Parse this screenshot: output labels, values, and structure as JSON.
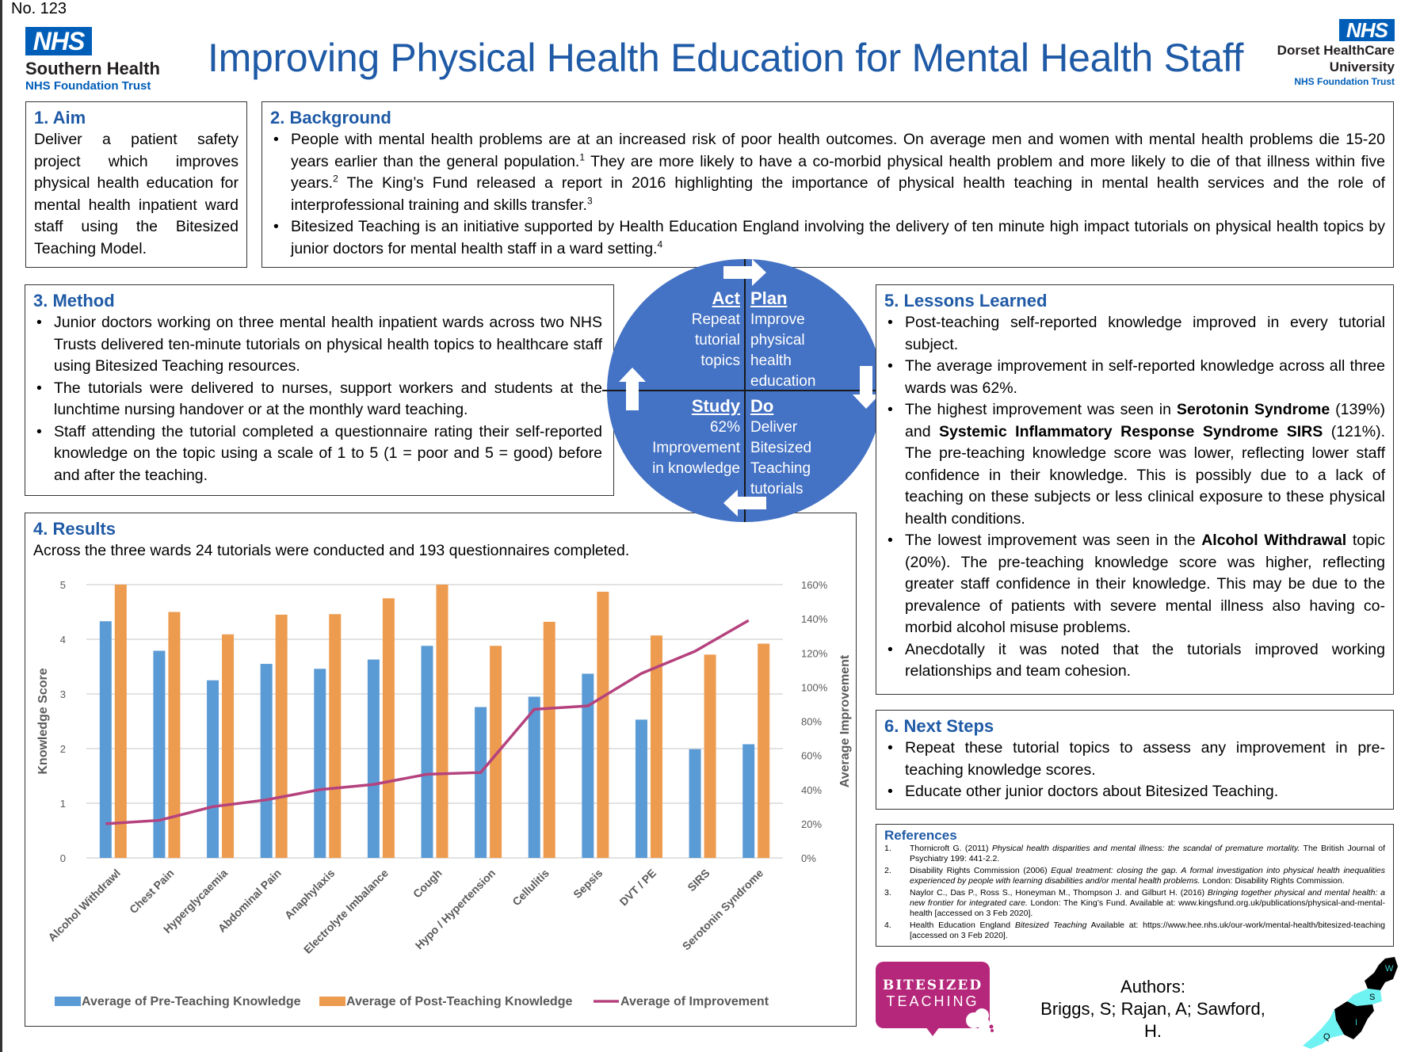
{
  "poster_number": "No. 123",
  "header": {
    "title": "Improving Physical Health Education for Mental Health Staff",
    "logo_left": {
      "badge": "NHS",
      "org": "Southern Health",
      "trust": "NHS Foundation Trust"
    },
    "logo_right": {
      "badge": "NHS",
      "org_line1": "Dorset HealthCare",
      "org_line2": "University",
      "trust": "NHS Foundation Trust"
    }
  },
  "aim": {
    "heading": "1. Aim",
    "text": "Deliver a patient safety project which improves physical health education for mental health inpatient ward staff using the Bitesized Teaching Model."
  },
  "background": {
    "heading": "2. Background",
    "bullets": [
      {
        "text": "People with mental health problems are at an increased risk of poor health outcomes. On average men and women with mental health problems die 15-20 years earlier than the general population.",
        "sup1": "1",
        "text2": " They are more likely to have a co-morbid physical health problem and more likely to die of that illness within five years.",
        "sup2": "2",
        "text3": " The King’s Fund released a report in 2016 highlighting the importance of physical health teaching in mental health services and the role of interprofessional training and skills transfer.",
        "sup3": "3"
      },
      {
        "text": "Bitesized Teaching is an initiative supported by Health Education England involving the delivery of ten minute high impact tutorials on physical health topics by junior doctors for mental health staff in a ward setting.",
        "sup1": "4"
      }
    ]
  },
  "method": {
    "heading": "3. Method",
    "bullets": [
      "Junior doctors working on three mental health inpatient wards across two NHS Trusts delivered ten-minute tutorials on physical health topics to healthcare staff using Bitesized Teaching resources.",
      "The tutorials were delivered to nurses, support workers and students at the lunchtime nursing handover or at the monthly ward teaching.",
      "Staff attending the tutorial completed a questionnaire rating their self-reported knowledge on the topic using a scale of 1 to 5 (1 = poor and 5 = good) before and after the teaching."
    ]
  },
  "pdsa": {
    "act": {
      "title": "Act",
      "lines": [
        "Repeat",
        "tutorial",
        "topics"
      ]
    },
    "plan": {
      "title": "Plan",
      "lines": [
        "Improve",
        "physical",
        "health",
        "education"
      ]
    },
    "study": {
      "title": "Study",
      "lines": [
        "62%",
        "Improvement",
        "in knowledge"
      ]
    },
    "do": {
      "title": "Do",
      "lines": [
        "Deliver",
        "Bitesized",
        "Teaching",
        "tutorials"
      ]
    },
    "color": "#4472c4",
    "icons": [
      "arrow-right-icon",
      "arrow-down-icon",
      "arrow-left-icon",
      "arrow-up-icon"
    ]
  },
  "results": {
    "heading": "4. Results",
    "summary": "Across the three wards 24 tutorials were conducted and 193 questionnaires completed."
  },
  "chart_data": {
    "type": "bar",
    "title": "",
    "categories": [
      "Alcohol Withdrawl",
      "Chest Pain",
      "Hyperglycaemia",
      "Abdominal Pain",
      "Anaphylaxis",
      "Electrolyte Imbalance",
      "Cough",
      "Hypo / Hypertension",
      "Cellulitis",
      "Sepsis",
      "DVT / PE",
      "SIRS",
      "Serotonin Syndrome"
    ],
    "series": [
      {
        "name": "Average of Pre-Teaching Knowledge",
        "type": "bar",
        "axis": "left",
        "color": "#5b9bd5",
        "values": [
          4.33,
          3.79,
          3.25,
          3.55,
          3.46,
          3.63,
          3.88,
          2.76,
          2.95,
          3.37,
          2.53,
          1.99,
          2.08
        ]
      },
      {
        "name": "Average of Post-Teaching Knowledge",
        "type": "bar",
        "axis": "left",
        "color": "#ed9b4f",
        "values": [
          5.0,
          4.5,
          4.09,
          4.45,
          4.46,
          4.75,
          5.0,
          3.88,
          4.32,
          4.87,
          4.07,
          3.72,
          3.92
        ]
      },
      {
        "name": "Average of Improvement",
        "type": "line",
        "axis": "right",
        "color": "#b5427e",
        "values": [
          0.2,
          0.22,
          0.3,
          0.34,
          0.4,
          0.43,
          0.49,
          0.5,
          0.87,
          0.89,
          1.08,
          1.21,
          1.39
        ]
      }
    ],
    "ylabel": "Knowledge Score",
    "ylim": [
      0,
      5
    ],
    "yticks": [
      "0",
      "1",
      "2",
      "3",
      "4",
      "5"
    ],
    "y2label": "Average Improvement",
    "y2lim": [
      0,
      1.6
    ],
    "y2ticks": [
      "0%",
      "20%",
      "40%",
      "60%",
      "80%",
      "100%",
      "120%",
      "140%",
      "160%"
    ],
    "grid": true,
    "legend_position": "bottom"
  },
  "lessons": {
    "heading": "5. Lessons Learned",
    "b1": "Post-teaching self-reported knowledge improved in every tutorial subject.",
    "b2": "The average improvement in self-reported knowledge across all three wards was 62%.",
    "b3_pre": "The highest improvement was seen in ",
    "b3_bold1": "Serotonin Syndrome",
    "b3_mid": " (139%) and ",
    "b3_bold2": "Systemic Inflammatory Response Syndrome SIRS",
    "b3_post": " (121%). The pre-teaching knowledge score was lower, reflecting lower staff confidence in their knowledge. This is possibly due to a lack of teaching on these subjects or less clinical exposure to these physical health conditions.",
    "b4_pre": "The lowest improvement was seen in the ",
    "b4_bold": "Alcohol Withdrawal",
    "b4_post": " topic (20%). The pre-teaching knowledge score was higher, reflecting greater staff confidence in their knowledge. This may be due to the prevalence of patients with severe mental illness also having co-morbid alcohol misuse problems.",
    "b5": "Anecdotally it was noted that the tutorials improved working relationships and team cohesion."
  },
  "next_steps": {
    "heading": "6. Next Steps",
    "bullets": [
      "Repeat these tutorial topics to assess any improvement in pre-teaching knowledge scores.",
      "Educate other junior doctors about Bitesized Teaching."
    ]
  },
  "references": {
    "heading": "References",
    "items": [
      {
        "num": "1.",
        "pre": "Thornicroft G. (2011) ",
        "ital": "Physical health disparities and mental illness: the scandal of premature mortality.",
        "post": " The British Journal of Psychiatry 199: 441-2.2."
      },
      {
        "num": "2.",
        "pre": "Disability Rights Commission (2006) ",
        "ital": "Equal treatment: closing the gap. A formal investigation into physical health inequalities experienced by people with learning disabilities and/or mental health problems.",
        "post": " London: Disability Rights Commission."
      },
      {
        "num": "3.",
        "pre": "Naylor C., Das P., Ross S., Honeyman M., Thompson J. and Gilburt H. (2016) ",
        "ital": "Bringing together physical and mental health: a new frontier for integrated care.",
        "post": " London: The King’s Fund. Available at: www.kingsfund.org.uk/publications/physical-and-mental-health [accessed on 3 Feb 2020]."
      },
      {
        "num": "4.",
        "pre": "Health Education England ",
        "ital": "Bitesized Teaching",
        "post": " Available at: https://www.hee.nhs.uk/our-work/mental-health/bitesized-teaching [accessed on 3 Feb 2020]."
      }
    ]
  },
  "footer": {
    "bitesized_line1": "BITESIZED",
    "bitesized_line2": "TEACHING",
    "authors_label": "Authors:",
    "authors": "Briggs, S; Rajan, A; Sawford, H.",
    "map_labels": [
      "W",
      "S",
      "I",
      "Q"
    ]
  }
}
